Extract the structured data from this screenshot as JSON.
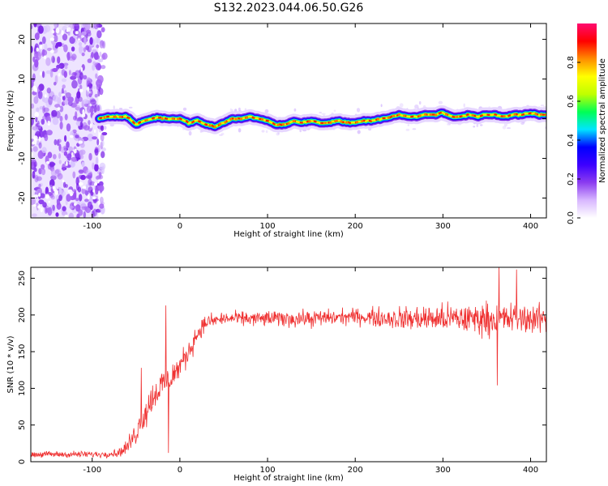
{
  "title": "S132.2023.044.06.50.G26",
  "chart_data": [
    {
      "type": "heatmap",
      "xlabel": "Height of straight line (km)",
      "ylabel": "Frequency (Hz)",
      "xlim": [
        -170,
        418
      ],
      "ylim": [
        -25,
        24
      ],
      "xticks": [
        -100,
        0,
        100,
        200,
        300,
        400
      ],
      "xtick_labels": [
        "-100",
        "0",
        "100",
        "200",
        "300",
        "400"
      ],
      "yticks": [
        -20,
        -10,
        0,
        10,
        20
      ],
      "ytick_labels": [
        "-20",
        "-10",
        "0",
        "10",
        "20"
      ],
      "grid": false,
      "noise_region_end_km": -93,
      "trace": {
        "x": [
          -95,
          -80,
          -60,
          -50,
          -40,
          -25,
          -10,
          0,
          10,
          20,
          30,
          40,
          50,
          60,
          70,
          80,
          90,
          100,
          110,
          120,
          130,
          140,
          150,
          160,
          170,
          180,
          190,
          200,
          210,
          220,
          230,
          240,
          250,
          260,
          270,
          280,
          290,
          300,
          310,
          320,
          330,
          340,
          350,
          360,
          370,
          380,
          390,
          400,
          410,
          418
        ],
        "y": [
          0,
          0.5,
          0.5,
          -1.5,
          -0.5,
          0.3,
          0,
          0,
          -1.0,
          -0.5,
          -1.5,
          -2.0,
          -1.0,
          0,
          0,
          0.5,
          0,
          -0.5,
          -1.5,
          -1.5,
          -0.5,
          -1.0,
          -0.5,
          -1.0,
          -1.0,
          -0.5,
          -1.0,
          -1.0,
          -0.5,
          -0.5,
          0,
          0.5,
          1.0,
          0.5,
          0.5,
          1.0,
          1.0,
          1.5,
          0.5,
          0.5,
          1.0,
          0.5,
          1.0,
          1.0,
          0.5,
          1.0,
          1.0,
          1.5,
          1.0,
          1.0
        ]
      }
    },
    {
      "type": "line",
      "xlabel": "Height of straight line (km)",
      "ylabel": "SNR (10 * v/v)",
      "xlim": [
        -170,
        418
      ],
      "ylim": [
        0,
        265
      ],
      "xticks": [
        -100,
        0,
        100,
        200,
        300,
        400
      ],
      "xtick_labels": [
        "-100",
        "0",
        "100",
        "200",
        "300",
        "400"
      ],
      "yticks": [
        0,
        50,
        100,
        150,
        200,
        250
      ],
      "ytick_labels": [
        "0",
        "50",
        "100",
        "150",
        "200",
        "250"
      ],
      "color": "#ef3030",
      "envelope": {
        "x": [
          -170,
          -90,
          -70,
          -60,
          -50,
          -40,
          -30,
          -20,
          -10,
          0,
          10,
          20,
          30,
          50,
          100,
          150,
          200,
          250,
          300,
          350,
          400,
          418
        ],
        "y": [
          10,
          10,
          12,
          20,
          40,
          65,
          90,
          105,
          115,
          130,
          150,
          175,
          190,
          195,
          195,
          195,
          198,
          195,
          195,
          195,
          195,
          195
        ],
        "noise": [
          5,
          5,
          6,
          12,
          20,
          25,
          25,
          25,
          22,
          20,
          18,
          15,
          12,
          10,
          12,
          13,
          12,
          18,
          22,
          25,
          22,
          22
        ]
      },
      "spikes": [
        {
          "x": -16,
          "y": 213
        },
        {
          "x": -13,
          "y": 12
        },
        {
          "x": -44,
          "y": 128
        },
        {
          "x": 362,
          "y": 104
        },
        {
          "x": 364,
          "y": 266
        },
        {
          "x": 384,
          "y": 262
        }
      ]
    }
  ],
  "colorbar": {
    "label": "Normalized spectral amplitude",
    "range": [
      0,
      1
    ],
    "ticks": [
      0.0,
      0.2,
      0.4,
      0.6,
      0.8
    ],
    "tick_labels": [
      "0.0",
      "0.2",
      "0.4",
      "0.6",
      "0.8"
    ],
    "colors": [
      "#ffffff",
      "#d8b7ff",
      "#8b3cf0",
      "#3c00ff",
      "#0000ff",
      "#00e5ff",
      "#00ff55",
      "#bfff00",
      "#ffff00",
      "#ff8c00",
      "#ff0000",
      "#ff0a70"
    ]
  }
}
